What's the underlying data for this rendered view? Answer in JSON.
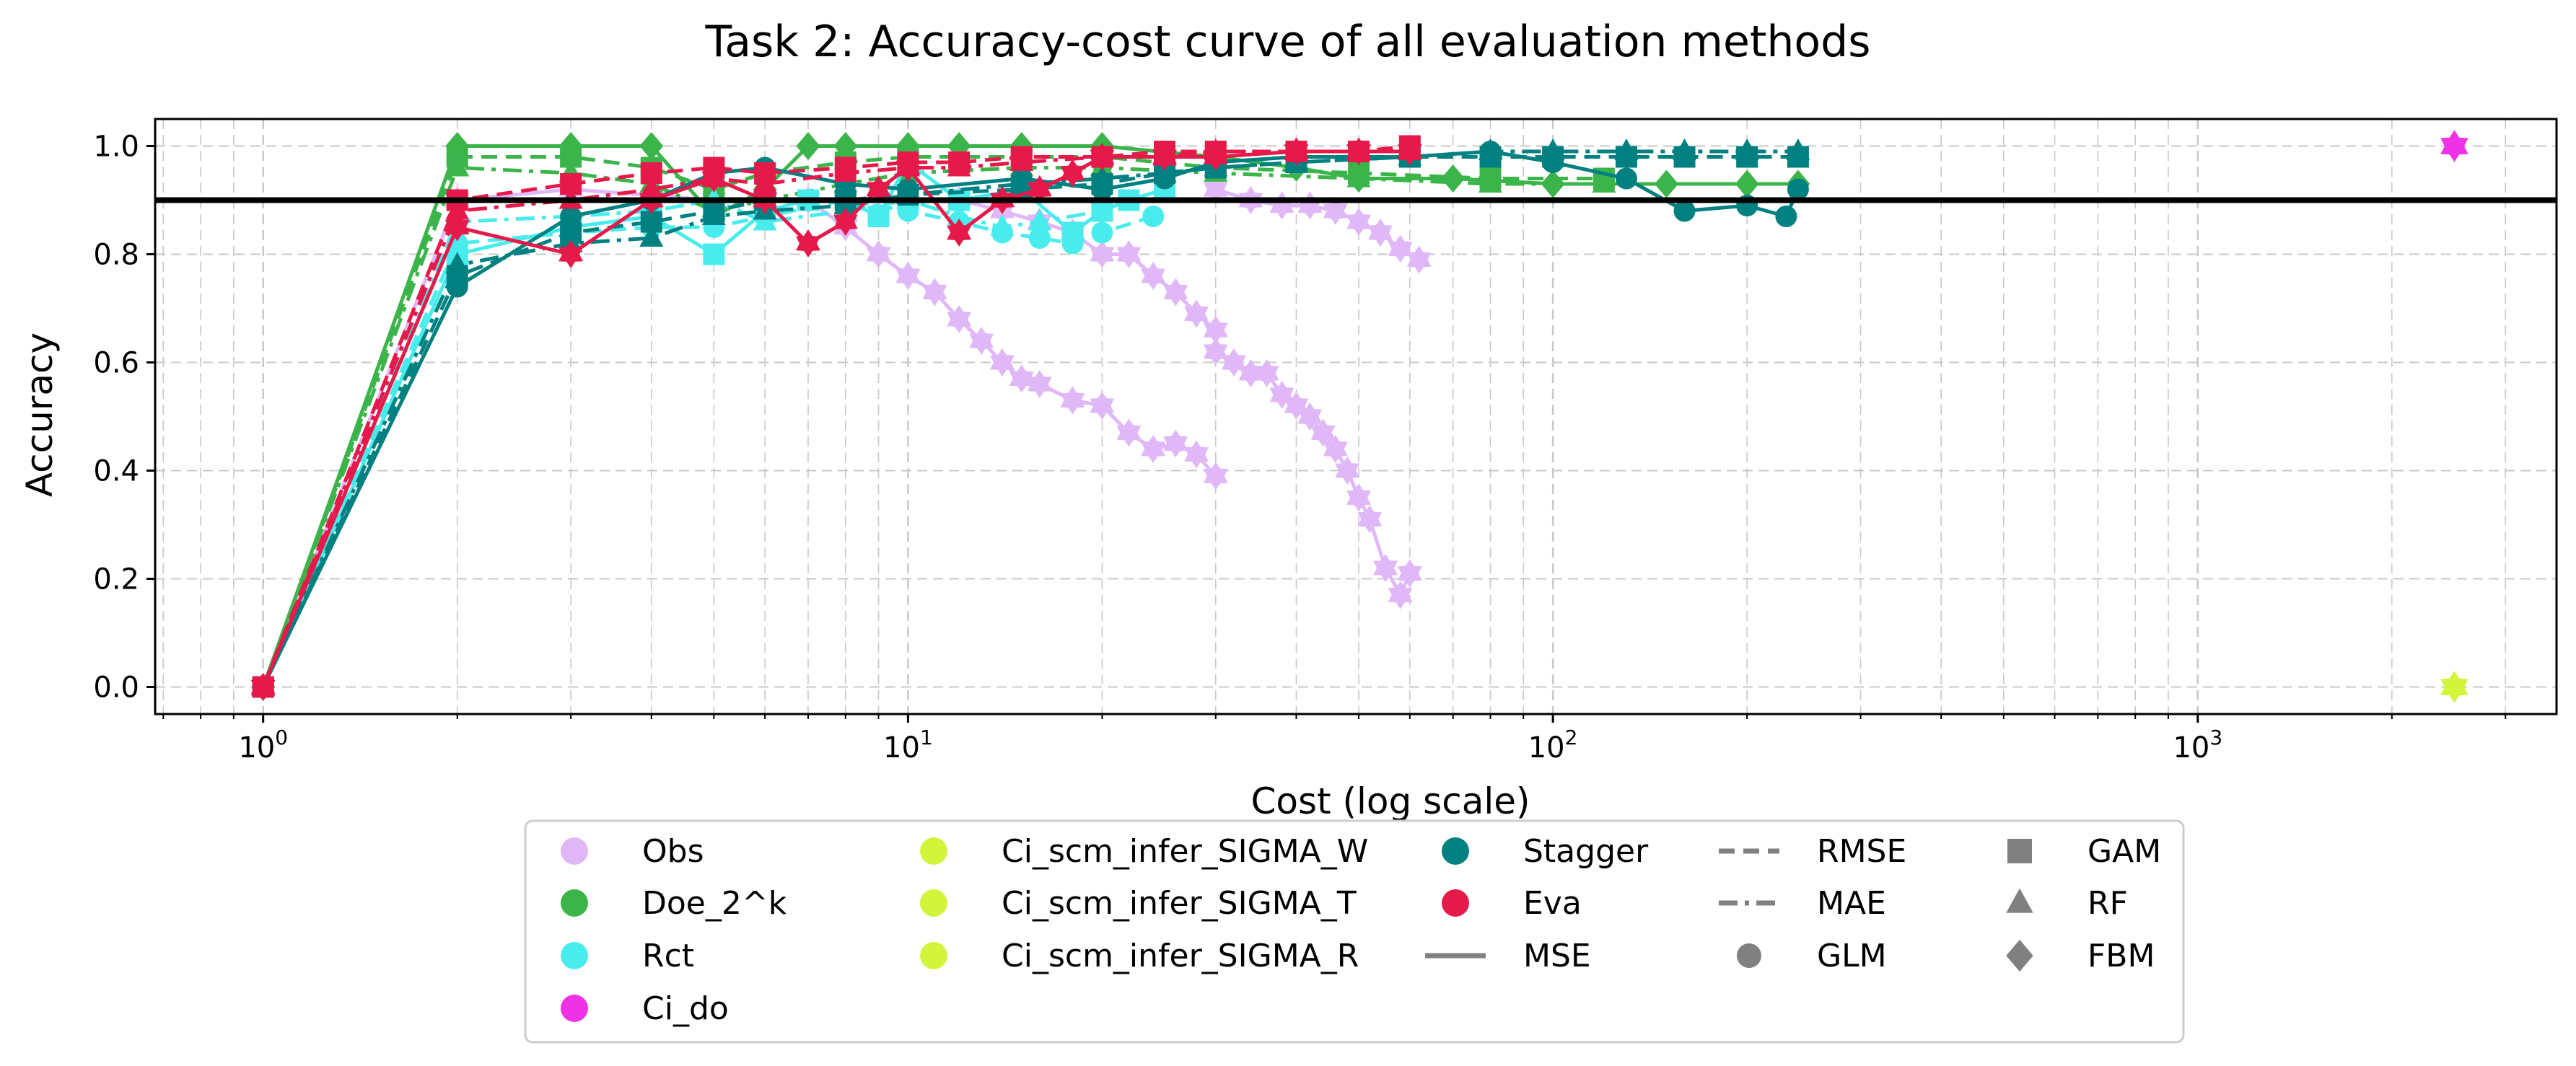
{
  "chart_data": {
    "type": "line",
    "title": "Task 2: Accuracy-cost curve of all evaluation methods",
    "xlabel": "Cost (log scale)",
    "ylabel": "Accuracy",
    "xscale": "log",
    "xlim": [
      0.68,
      3600
    ],
    "ylim": [
      -0.05,
      1.05
    ],
    "xtick_exponents": [
      0,
      1,
      2,
      3
    ],
    "ytick_values": [
      0.0,
      0.2,
      0.4,
      0.6,
      0.8,
      1.0
    ],
    "ytick_labels": [
      "0.0",
      "0.2",
      "0.4",
      "0.6",
      "0.8",
      "1.0"
    ],
    "grid": true,
    "reference_line": {
      "y": 0.9,
      "color": "#000000"
    },
    "colors": {
      "obs": "#e0b8f8",
      "doe": "#3bb44a",
      "rct": "#48ecec",
      "ci_do": "#f032e6",
      "ci_scm": "#d2f53c",
      "stagger": "#008080",
      "eva": "#e6194b",
      "reference": "#000000",
      "grid": "#c8c8c8",
      "legend_gray": "#808080"
    },
    "series": [
      {
        "name": "Obs (A)",
        "color_key": "obs",
        "marker": "star",
        "dash": "solid",
        "x": [
          1,
          2,
          3,
          5,
          7,
          8,
          9,
          10,
          11,
          12,
          13,
          14,
          15,
          16,
          18,
          20,
          22,
          24,
          26,
          28,
          30
        ],
        "y": [
          0,
          0.9,
          0.92,
          0.9,
          0.9,
          0.85,
          0.8,
          0.76,
          0.73,
          0.68,
          0.64,
          0.6,
          0.57,
          0.56,
          0.53,
          0.52,
          0.47,
          0.44,
          0.45,
          0.43,
          0.39
        ]
      },
      {
        "name": "Obs (B)",
        "color_key": "obs",
        "marker": "star",
        "dash": "solid",
        "x": [
          30,
          32,
          34,
          36,
          38,
          40,
          42,
          44,
          46,
          48,
          50,
          52,
          55,
          58,
          60
        ],
        "y": [
          0.62,
          0.6,
          0.58,
          0.58,
          0.54,
          0.52,
          0.5,
          0.47,
          0.44,
          0.4,
          0.35,
          0.31,
          0.22,
          0.17,
          0.21
        ]
      },
      {
        "name": "Obs (C)",
        "color_key": "obs",
        "marker": "star",
        "dash": "solid",
        "x": [
          12,
          14,
          16,
          18,
          20,
          22,
          24,
          26,
          28,
          30
        ],
        "y": [
          0.9,
          0.88,
          0.86,
          0.84,
          0.8,
          0.8,
          0.76,
          0.73,
          0.69,
          0.66
        ]
      },
      {
        "name": "Obs (D)",
        "color_key": "obs",
        "marker": "star",
        "dash": "solid",
        "x": [
          30,
          34,
          38,
          42,
          46,
          50,
          54,
          58,
          62
        ],
        "y": [
          0.92,
          0.9,
          0.89,
          0.89,
          0.88,
          0.86,
          0.84,
          0.81,
          0.79
        ]
      },
      {
        "name": "Doe_2^k MSE",
        "color_key": "doe",
        "marker": "diamond",
        "dash": "solid",
        "x": [
          1,
          2,
          3,
          4,
          5,
          6,
          7,
          8,
          10,
          12,
          15,
          20,
          30,
          40,
          50,
          70,
          100,
          150,
          200,
          240
        ],
        "y": [
          0,
          1.0,
          1.0,
          1.0,
          0.87,
          0.92,
          1.0,
          1.0,
          1.0,
          1.0,
          1.0,
          1.0,
          0.98,
          0.96,
          0.94,
          0.94,
          0.93,
          0.93,
          0.93,
          0.93
        ]
      },
      {
        "name": "Doe_2^k RMSE",
        "color_key": "doe",
        "marker": "square",
        "dash": "dash",
        "x": [
          1,
          2,
          3,
          4,
          5,
          6,
          8,
          10,
          15,
          20,
          30,
          50,
          80,
          120
        ],
        "y": [
          0,
          0.98,
          0.98,
          0.96,
          0.92,
          0.95,
          0.97,
          0.98,
          0.98,
          0.98,
          0.96,
          0.95,
          0.94,
          0.94
        ]
      },
      {
        "name": "Doe_2^k MAE",
        "color_key": "doe",
        "marker": "triangle",
        "dash": "dashdot",
        "x": [
          1,
          2,
          3,
          4,
          5,
          6,
          8,
          10,
          15,
          20,
          30,
          50,
          80,
          120
        ],
        "y": [
          0,
          0.96,
          0.95,
          0.93,
          0.88,
          0.9,
          0.93,
          0.95,
          0.96,
          0.96,
          0.95,
          0.94,
          0.93,
          0.93
        ]
      },
      {
        "name": "Rct MSE",
        "color_key": "rct",
        "marker": "square",
        "dash": "solid",
        "x": [
          1,
          2,
          3,
          4,
          5,
          6,
          7,
          8,
          9,
          10,
          12,
          15,
          18,
          20,
          22,
          25
        ],
        "y": [
          0,
          0.8,
          0.85,
          0.87,
          0.8,
          0.88,
          0.9,
          0.9,
          0.87,
          0.97,
          0.9,
          0.92,
          0.84,
          0.88,
          0.9,
          0.92
        ]
      },
      {
        "name": "Rct RMSE",
        "color_key": "rct",
        "marker": "circle",
        "dash": "dash",
        "x": [
          1,
          2,
          3,
          4,
          5,
          6,
          8,
          10,
          12,
          14,
          16,
          18,
          20,
          24
        ],
        "y": [
          0,
          0.82,
          0.84,
          0.85,
          0.85,
          0.87,
          0.9,
          0.88,
          0.86,
          0.84,
          0.83,
          0.82,
          0.84,
          0.87
        ]
      },
      {
        "name": "Rct MAE",
        "color_key": "rct",
        "marker": "triangle",
        "dash": "dashdot",
        "x": [
          1,
          2,
          3,
          4,
          5,
          6,
          8,
          10,
          12,
          14,
          16,
          20
        ],
        "y": [
          0,
          0.86,
          0.87,
          0.88,
          0.9,
          0.86,
          0.88,
          0.9,
          0.87,
          0.85,
          0.86,
          0.88
        ]
      },
      {
        "name": "Stagger MSE",
        "color_key": "stagger",
        "marker": "circle",
        "dash": "solid",
        "x": [
          1,
          2,
          3,
          4,
          5,
          6,
          8,
          10,
          15,
          20,
          25,
          30,
          40,
          60,
          80,
          100,
          130,
          160,
          200,
          230,
          240
        ],
        "y": [
          0,
          0.74,
          0.87,
          0.9,
          0.95,
          0.96,
          0.93,
          0.92,
          0.94,
          0.92,
          0.94,
          0.97,
          0.98,
          0.98,
          0.99,
          0.97,
          0.94,
          0.88,
          0.89,
          0.87,
          0.92
        ]
      },
      {
        "name": "Stagger RMSE",
        "color_key": "stagger",
        "marker": "square",
        "dash": "dash",
        "x": [
          1,
          2,
          3,
          4,
          5,
          6,
          8,
          10,
          15,
          20,
          25,
          30,
          40,
          60,
          80,
          100,
          130,
          160,
          200,
          240
        ],
        "y": [
          0,
          0.76,
          0.84,
          0.86,
          0.88,
          0.9,
          0.9,
          0.91,
          0.92,
          0.93,
          0.95,
          0.96,
          0.97,
          0.98,
          0.98,
          0.98,
          0.98,
          0.98,
          0.98,
          0.98
        ]
      },
      {
        "name": "Stagger MAE",
        "color_key": "stagger",
        "marker": "triangle",
        "dash": "dashdot",
        "x": [
          1,
          2,
          3,
          4,
          5,
          6,
          8,
          10,
          15,
          20,
          25,
          30,
          40,
          60,
          80,
          100,
          130,
          160,
          200,
          240
        ],
        "y": [
          0,
          0.78,
          0.82,
          0.83,
          0.87,
          0.88,
          0.89,
          0.91,
          0.93,
          0.94,
          0.95,
          0.96,
          0.97,
          0.98,
          0.99,
          0.99,
          0.99,
          0.99,
          0.99,
          0.99
        ]
      },
      {
        "name": "Eva MSE",
        "color_key": "eva",
        "marker": "star",
        "dash": "solid",
        "x": [
          1,
          2,
          3,
          4,
          5,
          6,
          7,
          8,
          9,
          10,
          12,
          14,
          16,
          18,
          20,
          25,
          30,
          40,
          50,
          60
        ],
        "y": [
          0,
          0.85,
          0.8,
          0.9,
          0.94,
          0.9,
          0.82,
          0.86,
          0.92,
          0.96,
          0.84,
          0.9,
          0.92,
          0.95,
          0.98,
          0.98,
          0.98,
          0.99,
          0.99,
          0.99
        ]
      },
      {
        "name": "Eva RMSE",
        "color_key": "eva",
        "marker": "square",
        "dash": "dash",
        "x": [
          1,
          2,
          3,
          4,
          5,
          6,
          8,
          10,
          12,
          15,
          20,
          25,
          30,
          40,
          50,
          60
        ],
        "y": [
          0,
          0.9,
          0.93,
          0.95,
          0.96,
          0.95,
          0.96,
          0.97,
          0.97,
          0.98,
          0.98,
          0.99,
          0.99,
          0.99,
          0.99,
          1.0
        ]
      },
      {
        "name": "Eva MAE",
        "color_key": "eva",
        "marker": "triangle",
        "dash": "dashdot",
        "x": [
          1,
          2,
          3,
          4,
          5,
          6,
          8,
          10,
          12,
          15,
          20,
          25,
          30,
          40,
          50,
          60
        ],
        "y": [
          0,
          0.88,
          0.9,
          0.92,
          0.94,
          0.93,
          0.95,
          0.96,
          0.96,
          0.97,
          0.98,
          0.98,
          0.99,
          0.99,
          0.99,
          0.99
        ]
      }
    ],
    "points": [
      {
        "name": "Ci_do",
        "color_key": "ci_do",
        "marker": "star",
        "x": 2500,
        "y": 1.0
      },
      {
        "name": "Ci_scm_infer",
        "color_key": "ci_scm",
        "marker": "star",
        "x": 2500,
        "y": 0.0
      }
    ],
    "legend": {
      "placement": "below",
      "columns": [
        [
          {
            "label": "Obs",
            "color_key": "obs",
            "symbol": "dot"
          },
          {
            "label": "Doe_2^k",
            "color_key": "doe",
            "symbol": "dot"
          },
          {
            "label": "Rct",
            "color_key": "rct",
            "symbol": "dot"
          },
          {
            "label": "Ci_do",
            "color_key": "ci_do",
            "symbol": "dot"
          }
        ],
        [
          {
            "label": "Ci_scm_infer_SIGMA_W",
            "color_key": "ci_scm",
            "symbol": "dot"
          },
          {
            "label": "Ci_scm_infer_SIGMA_T",
            "color_key": "ci_scm",
            "symbol": "dot"
          },
          {
            "label": "Ci_scm_infer_SIGMA_R",
            "color_key": "ci_scm",
            "symbol": "dot"
          }
        ],
        [
          {
            "label": "Stagger",
            "color_key": "stagger",
            "symbol": "dot"
          },
          {
            "label": "Eva",
            "color_key": "eva",
            "symbol": "dot"
          },
          {
            "label": "MSE",
            "color_key": "legend_gray",
            "symbol": "solid-line"
          }
        ],
        [
          {
            "label": "RMSE",
            "color_key": "legend_gray",
            "symbol": "dash-line"
          },
          {
            "label": "MAE",
            "color_key": "legend_gray",
            "symbol": "dashdot-line"
          },
          {
            "label": "GLM",
            "color_key": "legend_gray",
            "symbol": "circle"
          }
        ],
        [
          {
            "label": "GAM",
            "color_key": "legend_gray",
            "symbol": "square"
          },
          {
            "label": "RF",
            "color_key": "legend_gray",
            "symbol": "triangle"
          },
          {
            "label": "FBM",
            "color_key": "legend_gray",
            "symbol": "diamond"
          }
        ]
      ]
    }
  }
}
